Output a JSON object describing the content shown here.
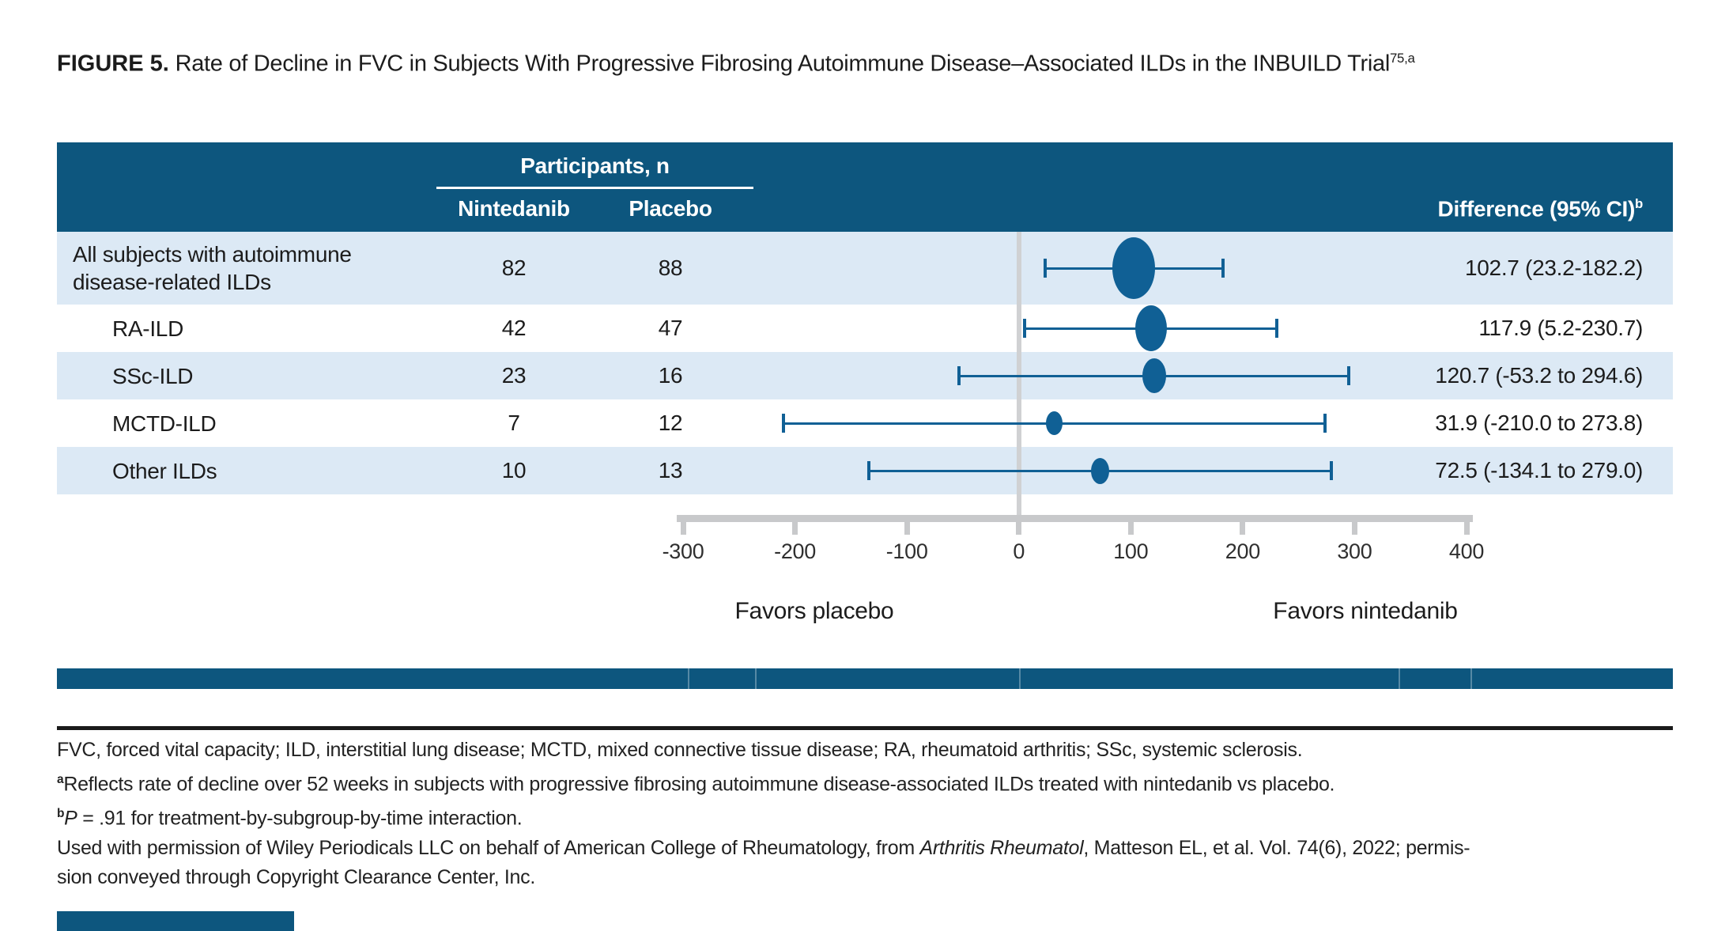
{
  "title": {
    "label": "FIGURE 5.",
    "text": " Rate of Decline in FVC in Subjects With Progressive Fibrosing Autoimmune Disease–Associated ILDs in the INBUILD Trial",
    "superscript": "75,a"
  },
  "table": {
    "participants_header": "Participants, n",
    "col_nintedanib": "Nintedanib",
    "col_placebo": "Placebo",
    "col_difference": "Difference (95% CI)",
    "col_difference_sup": "b",
    "rows": [
      {
        "label": "All subjects with autoimmune disease-related ILDs",
        "nintedanib": "82",
        "placebo": "88",
        "difference": "102.7 (23.2-182.2)"
      },
      {
        "label": "RA-ILD",
        "nintedanib": "42",
        "placebo": "47",
        "difference": "117.9 (5.2-230.7)"
      },
      {
        "label": "SSc-ILD",
        "nintedanib": "23",
        "placebo": "16",
        "difference": "120.7 (-53.2 to 294.6)"
      },
      {
        "label": "MCTD-ILD",
        "nintedanib": "7",
        "placebo": "12",
        "difference": "31.9 (-210.0 to 273.8)"
      },
      {
        "label": "Other ILDs",
        "nintedanib": "10",
        "placebo": "13",
        "difference": "72.5 (-134.1 to 279.0)"
      }
    ]
  },
  "chart_data": {
    "type": "scatter",
    "subtype": "forest-plot",
    "xlim": [
      -300,
      400
    ],
    "x_ticks": [
      -300,
      -200,
      -100,
      0,
      100,
      200,
      300,
      400
    ],
    "reference_line_x": 0,
    "favors_left_label": "Favors placebo",
    "favors_right_label": "Favors nintedanib",
    "series": [
      {
        "label": "All subjects with autoimmune disease-related ILDs",
        "n_nintedanib": 82,
        "n_placebo": 88,
        "estimate": 102.7,
        "ci_low": 23.2,
        "ci_high": 182.2
      },
      {
        "label": "RA-ILD",
        "n_nintedanib": 42,
        "n_placebo": 47,
        "estimate": 117.9,
        "ci_low": 5.2,
        "ci_high": 230.7
      },
      {
        "label": "SSc-ILD",
        "n_nintedanib": 23,
        "n_placebo": 16,
        "estimate": 120.7,
        "ci_low": -53.2,
        "ci_high": 294.6
      },
      {
        "label": "MCTD-ILD",
        "n_nintedanib": 7,
        "n_placebo": 12,
        "estimate": 31.9,
        "ci_low": -210.0,
        "ci_high": 273.8
      },
      {
        "label": "Other ILDs",
        "n_nintedanib": 10,
        "n_placebo": 13,
        "estimate": 72.5,
        "ci_low": -134.1,
        "ci_high": 279.0
      }
    ],
    "marker_widths": [
      54,
      40,
      30,
      21,
      23
    ],
    "legend_position": "none",
    "grid": false
  },
  "footnotes": {
    "line1": "FVC, forced vital capacity; ILD, interstitial lung disease; MCTD, mixed connective tissue disease; RA, rheumatoid arthritis; SSc, systemic sclerosis.",
    "sup_a": "a",
    "line2": "Reflects rate of decline over 52 weeks in subjects with progressive fibrosing autoimmune disease-associated ILDs treated with nintedanib vs placebo.",
    "sup_b": "b",
    "line3_italic": "P",
    "line3_rest": " = .91 for treatment-by-subgroup-by-time interaction.",
    "line4_pre": "Used with permission of Wiley Periodicals LLC on behalf of American College of Rheumatology, from ",
    "line4_italic": "Arthritis Rheumatol",
    "line4_post": ", Matteson EL, et al. Vol. 74(6), 2022; permis-",
    "line5": "sion conveyed through Copyright Clearance Center, Inc."
  },
  "colors": {
    "header_blue": "#0D567E",
    "marker_blue": "#106095",
    "row_light_blue": "#DCE9F5",
    "axis_gray": "#C8C9CB",
    "zero_line_gray": "#D0D1D3",
    "rule_black": "#1A1A1A",
    "text": "#1C1C1C"
  }
}
